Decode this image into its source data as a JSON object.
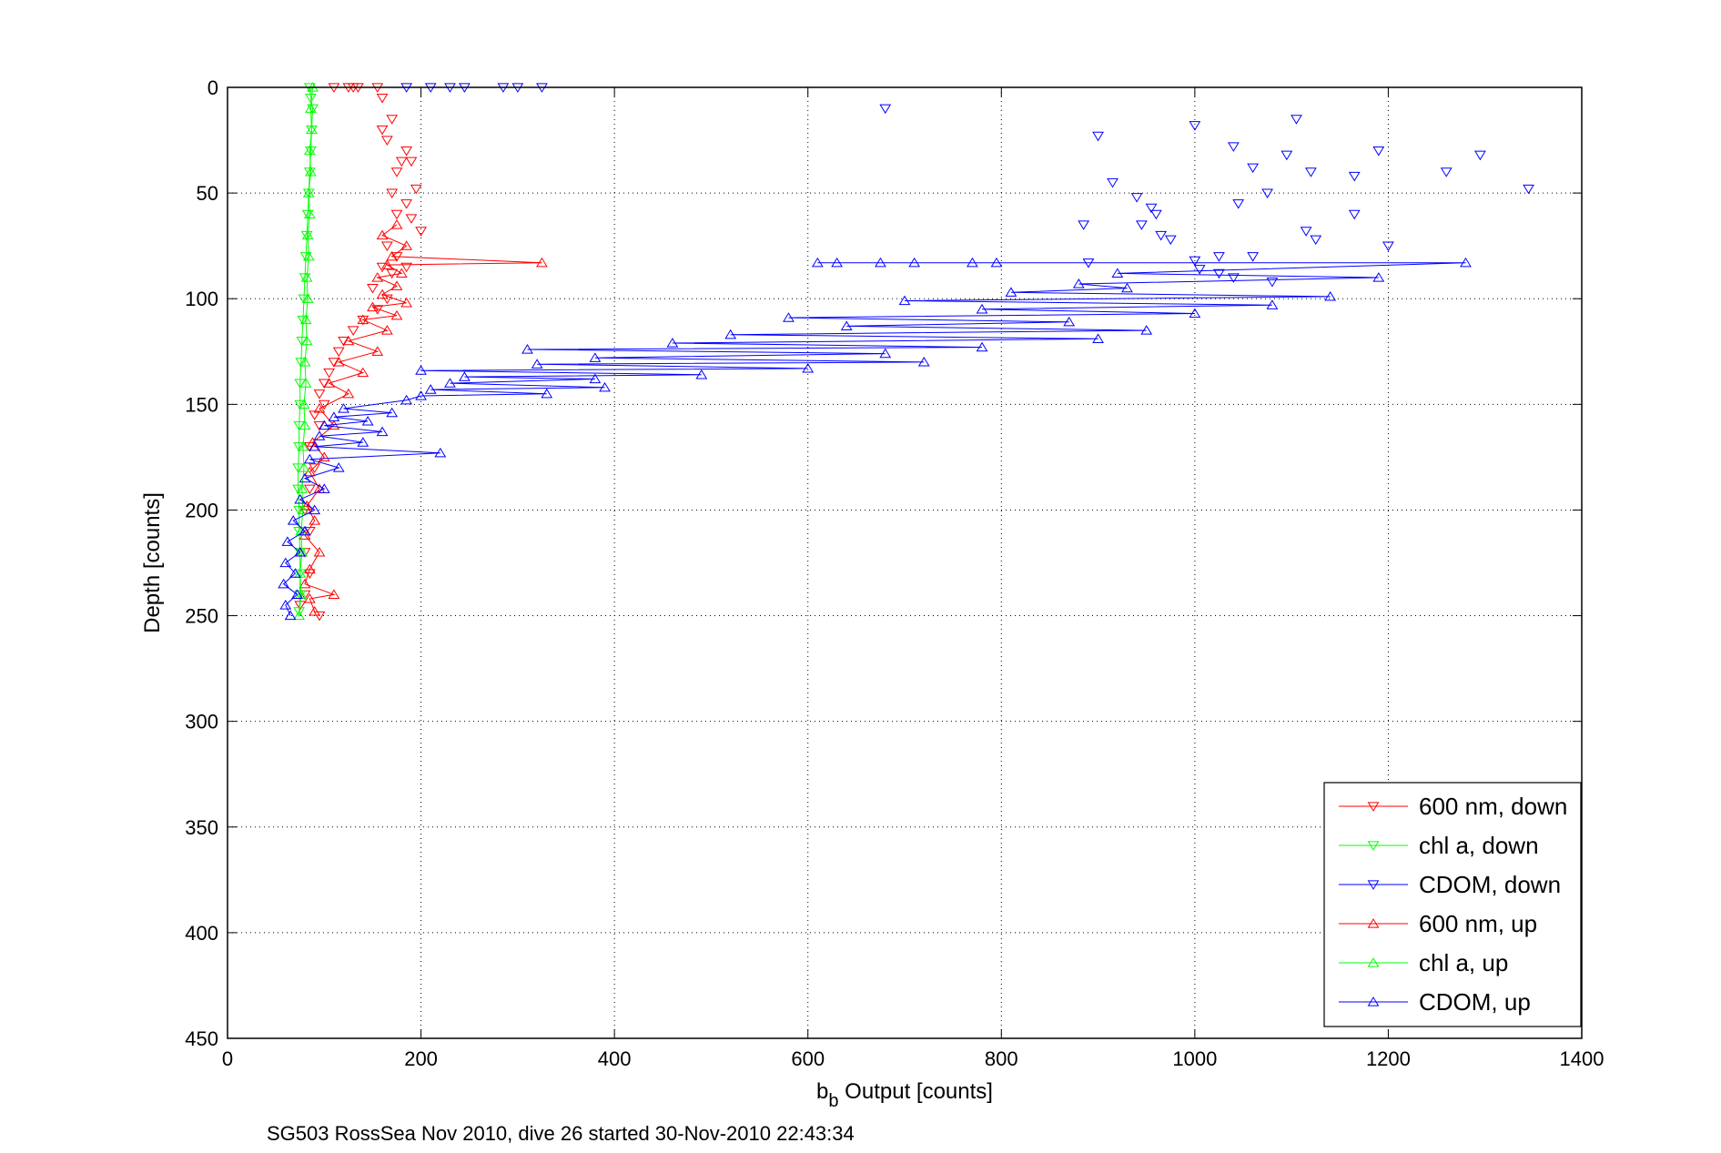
{
  "figure": {
    "caption": "SG503 RossSea Nov 2010, dive 26 started 30-Nov-2010 22:43:34"
  },
  "chart_data": {
    "type": "scatter",
    "title": "",
    "xlabel_main": "b",
    "xlabel_sub": "b",
    "xlabel_rest": " Output [counts]",
    "ylabel": "Depth [counts]",
    "xlim": [
      0,
      1400
    ],
    "ylim": [
      0,
      450
    ],
    "y_reversed": true,
    "x_ticks": [
      0,
      200,
      400,
      600,
      800,
      1000,
      1200,
      1400
    ],
    "y_ticks": [
      0,
      50,
      100,
      150,
      200,
      250,
      300,
      350,
      400,
      450
    ],
    "x_tick_labels": [
      "0",
      "200",
      "400",
      "600",
      "800",
      "1000",
      "1200",
      "1400"
    ],
    "y_tick_labels": [
      "0",
      "50",
      "100",
      "150",
      "200",
      "250",
      "300",
      "350",
      "400",
      "450"
    ],
    "grid": true,
    "legend_position": "bottom-right",
    "colors": {
      "red": "#ff0000",
      "green": "#00ff00",
      "blue": "#0000ff"
    },
    "series": [
      {
        "name": "600 nm, down",
        "color": "#ff0000",
        "marker": "triangle-down",
        "line": false,
        "points": [
          [
            125,
            0
          ],
          [
            130,
            0
          ],
          [
            135,
            0
          ],
          [
            110,
            0
          ],
          [
            155,
            0
          ],
          [
            160,
            5
          ],
          [
            170,
            15
          ],
          [
            160,
            20
          ],
          [
            165,
            25
          ],
          [
            185,
            30
          ],
          [
            180,
            35
          ],
          [
            190,
            35
          ],
          [
            175,
            40
          ],
          [
            195,
            48
          ],
          [
            170,
            50
          ],
          [
            185,
            55
          ],
          [
            175,
            60
          ],
          [
            190,
            62
          ],
          [
            200,
            68
          ],
          [
            165,
            75
          ],
          [
            175,
            80
          ],
          [
            185,
            85
          ],
          [
            160,
            85
          ],
          [
            170,
            88
          ],
          [
            150,
            95
          ],
          [
            165,
            100
          ],
          [
            155,
            105
          ],
          [
            140,
            110
          ],
          [
            130,
            115
          ],
          [
            120,
            120
          ],
          [
            115,
            125
          ],
          [
            110,
            130
          ],
          [
            105,
            135
          ],
          [
            100,
            140
          ],
          [
            95,
            145
          ],
          [
            100,
            150
          ],
          [
            90,
            155
          ],
          [
            95,
            160
          ],
          [
            85,
            170
          ],
          [
            90,
            180
          ],
          [
            85,
            190
          ],
          [
            80,
            200
          ],
          [
            85,
            210
          ],
          [
            80,
            220
          ],
          [
            85,
            230
          ],
          [
            80,
            240
          ],
          [
            75,
            245
          ],
          [
            95,
            250
          ]
        ]
      },
      {
        "name": "chl a, down",
        "color": "#00ff00",
        "marker": "triangle-down",
        "line": true,
        "points": [
          [
            85,
            0
          ],
          [
            86,
            5
          ],
          [
            88,
            10
          ],
          [
            87,
            20
          ],
          [
            86,
            30
          ],
          [
            85,
            40
          ],
          [
            84,
            50
          ],
          [
            83,
            60
          ],
          [
            82,
            70
          ],
          [
            81,
            80
          ],
          [
            80,
            90
          ],
          [
            79,
            100
          ],
          [
            78,
            110
          ],
          [
            77,
            120
          ],
          [
            76,
            130
          ],
          [
            75,
            140
          ],
          [
            75,
            150
          ],
          [
            74,
            160
          ],
          [
            74,
            170
          ],
          [
            73,
            180
          ],
          [
            73,
            190
          ],
          [
            74,
            200
          ],
          [
            74,
            210
          ],
          [
            75,
            220
          ],
          [
            75,
            230
          ],
          [
            75,
            240
          ],
          [
            74,
            248
          ]
        ]
      },
      {
        "name": "CDOM, down",
        "color": "#0000ff",
        "marker": "triangle-down",
        "line": false,
        "points": [
          [
            185,
            0
          ],
          [
            210,
            0
          ],
          [
            230,
            0
          ],
          [
            245,
            0
          ],
          [
            285,
            0
          ],
          [
            300,
            0
          ],
          [
            325,
            0
          ],
          [
            680,
            10
          ],
          [
            1105,
            15
          ],
          [
            900,
            23
          ],
          [
            1000,
            18
          ],
          [
            1040,
            28
          ],
          [
            1095,
            32
          ],
          [
            1190,
            30
          ],
          [
            1295,
            32
          ],
          [
            1060,
            38
          ],
          [
            1120,
            40
          ],
          [
            1260,
            40
          ],
          [
            1165,
            42
          ],
          [
            1345,
            48
          ],
          [
            915,
            45
          ],
          [
            1075,
            50
          ],
          [
            1045,
            55
          ],
          [
            940,
            52
          ],
          [
            955,
            57
          ],
          [
            960,
            60
          ],
          [
            945,
            65
          ],
          [
            1165,
            60
          ],
          [
            885,
            65
          ],
          [
            965,
            70
          ],
          [
            1115,
            68
          ],
          [
            1125,
            72
          ],
          [
            975,
            72
          ],
          [
            1200,
            75
          ],
          [
            1000,
            82
          ],
          [
            1025,
            80
          ],
          [
            1060,
            80
          ],
          [
            890,
            83
          ],
          [
            1005,
            86
          ],
          [
            1025,
            88
          ],
          [
            1040,
            90
          ],
          [
            1080,
            92
          ]
        ]
      },
      {
        "name": "600 nm, up",
        "color": "#ff0000",
        "marker": "triangle-up",
        "line": true,
        "points": [
          [
            90,
            248
          ],
          [
            85,
            242
          ],
          [
            110,
            240
          ],
          [
            80,
            235
          ],
          [
            85,
            228
          ],
          [
            95,
            220
          ],
          [
            80,
            212
          ],
          [
            90,
            205
          ],
          [
            82,
            198
          ],
          [
            95,
            190
          ],
          [
            85,
            182
          ],
          [
            100,
            175
          ],
          [
            88,
            168
          ],
          [
            110,
            160
          ],
          [
            95,
            152
          ],
          [
            125,
            145
          ],
          [
            105,
            140
          ],
          [
            140,
            135
          ],
          [
            115,
            130
          ],
          [
            155,
            125
          ],
          [
            125,
            120
          ],
          [
            165,
            115
          ],
          [
            140,
            110
          ],
          [
            175,
            108
          ],
          [
            150,
            104
          ],
          [
            185,
            102
          ],
          [
            160,
            98
          ],
          [
            175,
            94
          ],
          [
            155,
            90
          ],
          [
            180,
            88
          ],
          [
            165,
            84
          ],
          [
            325,
            83
          ],
          [
            170,
            80
          ],
          [
            185,
            75
          ],
          [
            160,
            70
          ],
          [
            175,
            65
          ]
        ]
      },
      {
        "name": "chl a, up",
        "color": "#00ff00",
        "marker": "triangle-up",
        "line": true,
        "points": [
          [
            74,
            250
          ],
          [
            76,
            240
          ],
          [
            75,
            230
          ],
          [
            77,
            220
          ],
          [
            76,
            210
          ],
          [
            78,
            200
          ],
          [
            77,
            190
          ],
          [
            79,
            180
          ],
          [
            78,
            170
          ],
          [
            80,
            160
          ],
          [
            79,
            150
          ],
          [
            81,
            140
          ],
          [
            80,
            130
          ],
          [
            82,
            120
          ],
          [
            81,
            110
          ],
          [
            83,
            100
          ],
          [
            82,
            90
          ],
          [
            84,
            80
          ],
          [
            83,
            70
          ],
          [
            85,
            60
          ],
          [
            84,
            50
          ],
          [
            86,
            40
          ],
          [
            85,
            30
          ],
          [
            87,
            20
          ],
          [
            86,
            10
          ],
          [
            88,
            0
          ]
        ]
      },
      {
        "name": "CDOM, up",
        "color": "#0000ff",
        "marker": "triangle-up",
        "line": true,
        "points": [
          [
            65,
            250
          ],
          [
            60,
            245
          ],
          [
            72,
            240
          ],
          [
            58,
            235
          ],
          [
            70,
            230
          ],
          [
            60,
            225
          ],
          [
            75,
            220
          ],
          [
            62,
            215
          ],
          [
            80,
            210
          ],
          [
            68,
            205
          ],
          [
            90,
            200
          ],
          [
            75,
            195
          ],
          [
            100,
            190
          ],
          [
            80,
            185
          ],
          [
            115,
            180
          ],
          [
            85,
            176
          ],
          [
            220,
            173
          ],
          [
            90,
            170
          ],
          [
            140,
            168
          ],
          [
            95,
            165
          ],
          [
            160,
            163
          ],
          [
            100,
            160
          ],
          [
            145,
            158
          ],
          [
            110,
            156
          ],
          [
            170,
            154
          ],
          [
            120,
            152
          ],
          [
            185,
            148
          ],
          [
            200,
            146
          ],
          [
            330,
            145
          ],
          [
            210,
            143
          ],
          [
            390,
            142
          ],
          [
            230,
            140
          ],
          [
            380,
            138
          ],
          [
            245,
            137
          ],
          [
            490,
            136
          ],
          [
            200,
            134
          ],
          [
            600,
            133
          ],
          [
            320,
            131
          ],
          [
            720,
            130
          ],
          [
            380,
            128
          ],
          [
            680,
            126
          ],
          [
            310,
            124
          ],
          [
            780,
            123
          ],
          [
            460,
            121
          ],
          [
            900,
            119
          ],
          [
            520,
            117
          ],
          [
            950,
            115
          ],
          [
            640,
            113
          ],
          [
            870,
            111
          ],
          [
            580,
            109
          ],
          [
            1000,
            107
          ],
          [
            780,
            105
          ],
          [
            1080,
            103
          ],
          [
            700,
            101
          ],
          [
            1140,
            99
          ],
          [
            810,
            97
          ],
          [
            930,
            95
          ],
          [
            880,
            93
          ],
          [
            1190,
            90
          ],
          [
            920,
            88
          ],
          [
            1280,
            83
          ],
          [
            610,
            83
          ],
          [
            630,
            83
          ],
          [
            675,
            83
          ],
          [
            710,
            83
          ],
          [
            770,
            83
          ],
          [
            795,
            83
          ]
        ]
      }
    ]
  }
}
